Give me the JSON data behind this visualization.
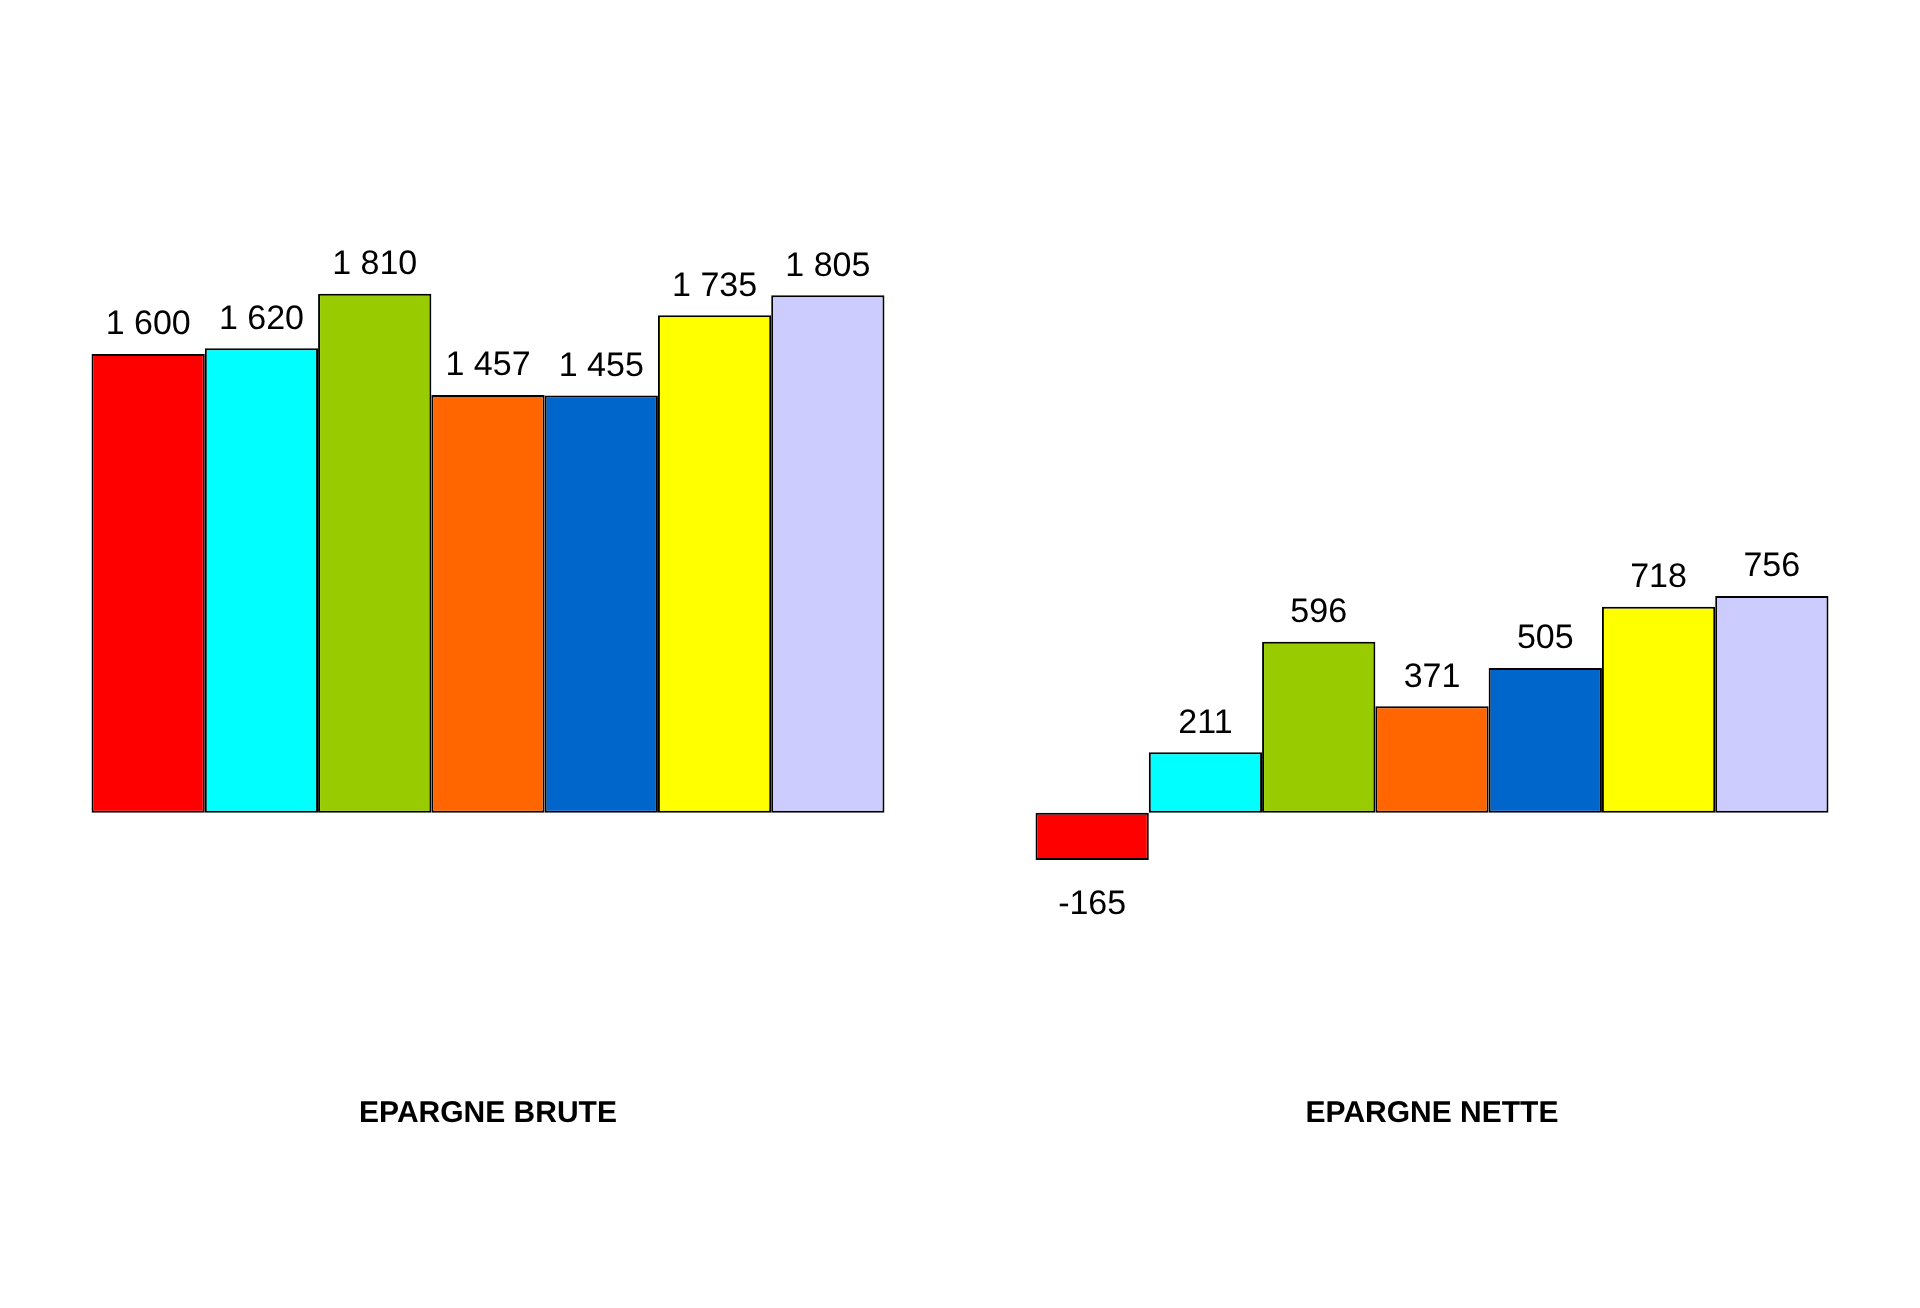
{
  "chart_data": {
    "type": "bar",
    "categories": [
      "EPARGNE BRUTE",
      "EPARGNE NETTE"
    ],
    "series": [
      {
        "color": "#ff0000",
        "values": [
          1600,
          -165
        ],
        "value_labels": [
          "1 600",
          "-165"
        ]
      },
      {
        "color": "#00ffff",
        "values": [
          1620,
          211
        ],
        "value_labels": [
          "1 620",
          "211"
        ]
      },
      {
        "color": "#99cc00",
        "values": [
          1810,
          596
        ],
        "value_labels": [
          "1 810",
          "596"
        ]
      },
      {
        "color": "#ff6600",
        "values": [
          1457,
          371
        ],
        "value_labels": [
          "1 457",
          "371"
        ]
      },
      {
        "color": "#0066cc",
        "values": [
          1455,
          505
        ],
        "value_labels": [
          "1 455",
          "505"
        ]
      },
      {
        "color": "#ffff00",
        "values": [
          1735,
          718
        ],
        "value_labels": [
          "1 735",
          "718"
        ]
      },
      {
        "color": "#ccccff",
        "values": [
          1805,
          756
        ],
        "value_labels": [
          "1 805",
          "756"
        ]
      }
    ],
    "tick_labels": "x",
    "grid": false,
    "legend": false
  }
}
